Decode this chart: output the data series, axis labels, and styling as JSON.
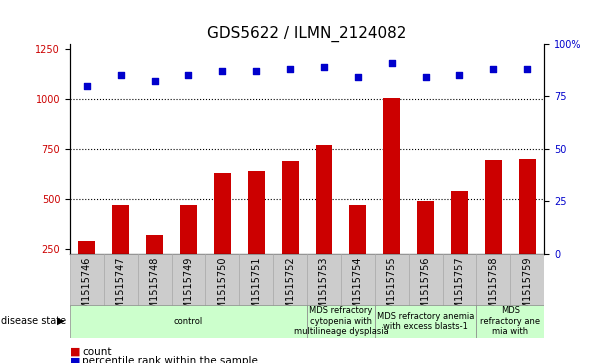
{
  "title": "GDS5622 / ILMN_2124082",
  "samples": [
    "GSM1515746",
    "GSM1515747",
    "GSM1515748",
    "GSM1515749",
    "GSM1515750",
    "GSM1515751",
    "GSM1515752",
    "GSM1515753",
    "GSM1515754",
    "GSM1515755",
    "GSM1515756",
    "GSM1515757",
    "GSM1515758",
    "GSM1515759"
  ],
  "counts": [
    290,
    470,
    320,
    470,
    630,
    640,
    690,
    770,
    470,
    1005,
    490,
    540,
    695,
    700
  ],
  "percentiles": [
    80,
    85,
    82,
    85,
    87,
    87,
    88,
    89,
    84,
    91,
    84,
    85,
    88,
    88
  ],
  "bar_color": "#cc0000",
  "scatter_color": "#0000cc",
  "ylim_left": [
    225,
    1275
  ],
  "ylim_right": [
    0,
    100
  ],
  "yticks_left": [
    250,
    500,
    750,
    1000,
    1250
  ],
  "yticks_right": [
    0,
    25,
    50,
    75,
    100
  ],
  "hlines": [
    500,
    750,
    1000
  ],
  "disease_groups": [
    {
      "label": "control",
      "start": 0,
      "end": 7
    },
    {
      "label": "MDS refractory\ncytopenia with\nmultilineage dysplasia",
      "start": 7,
      "end": 9
    },
    {
      "label": "MDS refractory anemia\nwith excess blasts-1",
      "start": 9,
      "end": 12
    },
    {
      "label": "MDS\nrefractory ane\nmia with",
      "start": 12,
      "end": 14
    }
  ],
  "disease_group_color": "#ccffcc",
  "disease_group_edge": "#888888",
  "xtick_bg_color": "#cccccc",
  "xtick_edge_color": "#aaaaaa",
  "disease_label": "disease state",
  "legend_count_label": "count",
  "legend_pct_label": "percentile rank within the sample",
  "title_fontsize": 11,
  "tick_fontsize": 7,
  "bar_width": 0.5
}
